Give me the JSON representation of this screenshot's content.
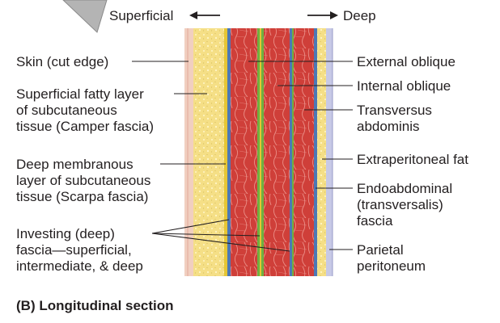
{
  "direction": {
    "left": "Superficial",
    "right": "Deep"
  },
  "left_labels": {
    "skin": "Skin (cut edge)",
    "camper": [
      "Superficial fatty layer",
      "of subcutaneous",
      "tissue (Camper fascia)"
    ],
    "scarpa": [
      "Deep membranous",
      "layer of subcutaneous",
      "tissue (Scarpa fascia)"
    ],
    "investing": [
      "Investing (deep)",
      "fascia—superficial,",
      "intermediate, & deep"
    ]
  },
  "right_labels": {
    "external_oblique": "External oblique",
    "internal_oblique": "Internal oblique",
    "transversus": [
      "Transversus",
      "abdominis"
    ],
    "extraperitoneal": "Extraperitoneal fat",
    "endoabdominal": [
      "Endoabdominal",
      "(transversalis)",
      "fascia"
    ],
    "parietal": [
      "Parietal",
      "peritoneum"
    ]
  },
  "caption": "(B) Longitudinal section",
  "colors": {
    "skin": "#f1cfc0",
    "fat": "#f5df86",
    "fat_speckle": "#fff6c8",
    "muscle": "#cf3f39",
    "muscle_line": "#f1a19a",
    "fascia_blue": "#4d78b5",
    "fascia_green": "#6fb040",
    "fascia_yellow": "#e5c635",
    "peritoneum": "#c7c9e6",
    "pointer": "#b4b4b4"
  }
}
